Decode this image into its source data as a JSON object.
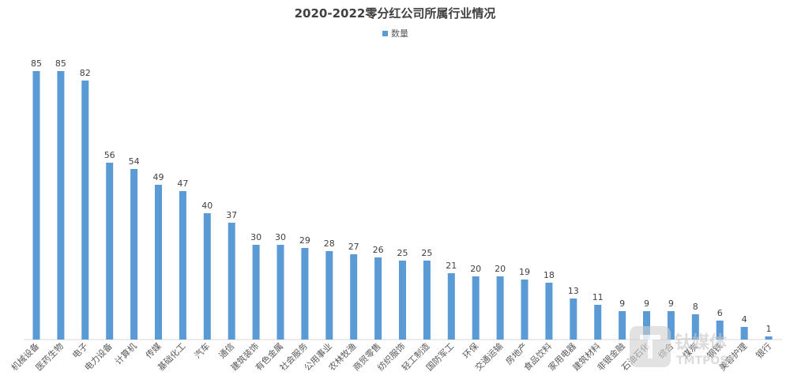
{
  "chart_data": {
    "type": "bar",
    "title": "2020-2022零分红公司所属行业情况",
    "legend": {
      "position": "top",
      "entries": [
        "数量"
      ]
    },
    "colors": {
      "bar": "#5b9bd5",
      "axis": "#d9d9d9",
      "text": "#595959"
    },
    "categories": [
      "机械设备",
      "医药生物",
      "电子",
      "电力设备",
      "计算机",
      "传媒",
      "基础化工",
      "汽车",
      "通信",
      "建筑装饰",
      "有色金属",
      "社会服务",
      "公用事业",
      "农林牧渔",
      "商贸零售",
      "纺织服饰",
      "轻工制造",
      "国防军工",
      "环保",
      "交通运输",
      "房地产",
      "食品饮料",
      "家用电器",
      "建筑材料",
      "非银金融",
      "石油石化",
      "综合",
      "煤炭",
      "钢铁",
      "美容护理",
      "银行"
    ],
    "series": [
      {
        "name": "数量",
        "values": [
          85,
          85,
          82,
          56,
          54,
          49,
          47,
          40,
          37,
          30,
          30,
          29,
          28,
          27,
          26,
          25,
          25,
          21,
          20,
          20,
          19,
          18,
          13,
          11,
          9,
          9,
          9,
          8,
          6,
          4,
          1
        ]
      }
    ],
    "ylim": [
      0,
      90
    ],
    "grid": false
  },
  "watermark": {
    "text": "钛媒体",
    "subtext": "TMTPOST",
    "icon": "tmtpost-logo-icon"
  }
}
